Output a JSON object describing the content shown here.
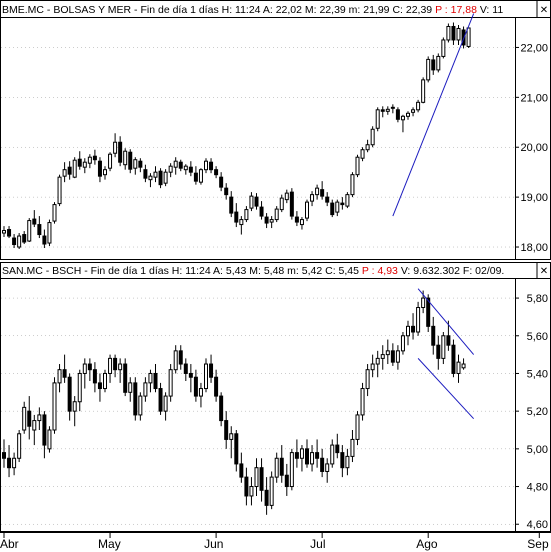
{
  "colors": {
    "candle": "#000000",
    "trendline": "#1c1cbf",
    "negative_text": "#e00000",
    "grid": "#9a9a9a",
    "border": "#000000"
  },
  "chart_data": [
    {
      "type": "candlestick",
      "header": {
        "prefix": "BME.MC - BOLSAS Y MER - Fin de día 1 días  H: 11:24  A: 22,02  M: 22,39  m: 21,99  C: 22,39 ",
        "change": "P : 17,88",
        "suffix": " V: 11"
      },
      "ylim": [
        17.82,
        22.55
      ],
      "y_ticks": [
        18.0,
        19.0,
        20.0,
        21.0,
        22.0
      ],
      "y_tick_labels": [
        "18,00",
        "19,00",
        "20,00",
        "21,00",
        "22,00"
      ],
      "ohlc": [
        [
          18.28,
          18.42,
          18.2,
          18.33
        ],
        [
          18.35,
          18.42,
          18.18,
          18.22
        ],
        [
          18.18,
          18.26,
          17.98,
          18.05
        ],
        [
          18.0,
          18.28,
          17.96,
          18.22
        ],
        [
          18.25,
          18.32,
          18.06,
          18.1
        ],
        [
          18.12,
          18.58,
          18.1,
          18.53
        ],
        [
          18.56,
          18.74,
          18.4,
          18.46
        ],
        [
          18.45,
          18.62,
          18.18,
          18.25
        ],
        [
          18.22,
          18.35,
          17.98,
          18.06
        ],
        [
          18.08,
          18.55,
          18.02,
          18.49
        ],
        [
          18.52,
          18.9,
          18.47,
          18.85
        ],
        [
          18.87,
          19.45,
          18.82,
          19.4
        ],
        [
          19.42,
          19.7,
          19.3,
          19.55
        ],
        [
          19.6,
          19.72,
          19.35,
          19.46
        ],
        [
          19.4,
          19.8,
          19.38,
          19.74
        ],
        [
          19.76,
          19.92,
          19.55,
          19.62
        ],
        [
          19.6,
          19.78,
          19.48,
          19.7
        ],
        [
          19.68,
          19.86,
          19.58,
          19.8
        ],
        [
          19.82,
          19.95,
          19.65,
          19.75
        ],
        [
          19.72,
          19.8,
          19.3,
          19.42
        ],
        [
          19.45,
          19.62,
          19.35,
          19.55
        ],
        [
          19.58,
          19.9,
          19.52,
          19.86
        ],
        [
          19.88,
          20.28,
          19.8,
          20.1
        ],
        [
          20.1,
          20.22,
          19.62,
          19.7
        ],
        [
          19.65,
          19.98,
          19.55,
          19.92
        ],
        [
          19.9,
          19.96,
          19.48,
          19.56
        ],
        [
          19.58,
          19.8,
          19.45,
          19.75
        ],
        [
          19.72,
          19.78,
          19.5,
          19.6
        ],
        [
          19.55,
          19.65,
          19.3,
          19.38
        ],
        [
          19.35,
          19.48,
          19.2,
          19.42
        ],
        [
          19.4,
          19.62,
          19.3,
          19.5
        ],
        [
          19.52,
          19.58,
          19.18,
          19.25
        ],
        [
          19.28,
          19.56,
          19.22,
          19.5
        ],
        [
          19.5,
          19.68,
          19.4,
          19.62
        ],
        [
          19.6,
          19.8,
          19.45,
          19.72
        ],
        [
          19.7,
          19.75,
          19.52,
          19.58
        ],
        [
          19.55,
          19.66,
          19.45,
          19.62
        ],
        [
          19.6,
          19.72,
          19.42,
          19.5
        ],
        [
          19.48,
          19.62,
          19.25,
          19.32
        ],
        [
          19.3,
          19.58,
          19.25,
          19.55
        ],
        [
          19.55,
          19.78,
          19.48,
          19.72
        ],
        [
          19.7,
          19.78,
          19.48,
          19.55
        ],
        [
          19.55,
          19.62,
          19.38,
          19.45
        ],
        [
          19.4,
          19.5,
          19.12,
          19.2
        ],
        [
          19.18,
          19.28,
          18.95,
          19.05
        ],
        [
          19.0,
          19.12,
          18.6,
          18.68
        ],
        [
          18.7,
          18.88,
          18.4,
          18.5
        ],
        [
          18.45,
          18.62,
          18.25,
          18.55
        ],
        [
          18.55,
          18.82,
          18.5,
          18.75
        ],
        [
          18.78,
          19.1,
          18.72,
          19.02
        ],
        [
          19.0,
          19.08,
          18.75,
          18.82
        ],
        [
          18.8,
          18.92,
          18.55,
          18.62
        ],
        [
          18.6,
          18.68,
          18.38,
          18.48
        ],
        [
          18.5,
          18.62,
          18.38,
          18.55
        ],
        [
          18.55,
          18.82,
          18.5,
          18.76
        ],
        [
          18.75,
          19.05,
          18.7,
          18.98
        ],
        [
          18.95,
          19.15,
          18.88,
          19.08
        ],
        [
          19.1,
          19.18,
          18.55,
          18.62
        ],
        [
          18.6,
          18.72,
          18.42,
          18.5
        ],
        [
          18.45,
          18.6,
          18.35,
          18.55
        ],
        [
          18.58,
          18.95,
          18.52,
          18.9
        ],
        [
          18.92,
          19.12,
          18.82,
          19.05
        ],
        [
          19.05,
          19.25,
          18.95,
          19.18
        ],
        [
          19.15,
          19.32,
          18.95,
          19.02
        ],
        [
          19.0,
          19.1,
          18.82,
          18.9
        ],
        [
          18.88,
          18.95,
          18.6,
          18.65
        ],
        [
          18.7,
          18.95,
          18.62,
          18.9
        ],
        [
          18.88,
          19.0,
          18.75,
          18.85
        ],
        [
          18.82,
          19.1,
          18.78,
          19.05
        ],
        [
          19.05,
          19.5,
          19.0,
          19.45
        ],
        [
          19.45,
          19.85,
          19.4,
          19.8
        ],
        [
          19.78,
          20.0,
          19.72,
          19.95
        ],
        [
          19.95,
          20.15,
          19.9,
          20.05
        ],
        [
          20.05,
          20.42,
          20.0,
          20.36
        ],
        [
          20.38,
          20.8,
          20.32,
          20.75
        ],
        [
          20.75,
          20.82,
          20.6,
          20.72
        ],
        [
          20.72,
          20.82,
          20.65,
          20.76
        ],
        [
          20.78,
          20.86,
          20.68,
          20.8
        ],
        [
          20.75,
          20.8,
          20.5,
          20.56
        ],
        [
          20.55,
          20.65,
          20.3,
          20.62
        ],
        [
          20.62,
          20.72,
          20.55,
          20.68
        ],
        [
          20.7,
          20.8,
          20.62,
          20.75
        ],
        [
          20.75,
          20.95,
          20.7,
          20.9
        ],
        [
          20.9,
          21.4,
          20.88,
          21.35
        ],
        [
          21.35,
          21.82,
          21.3,
          21.76
        ],
        [
          21.75,
          21.85,
          21.45,
          21.55
        ],
        [
          21.55,
          21.88,
          21.5,
          21.82
        ],
        [
          21.82,
          22.2,
          21.78,
          22.15
        ],
        [
          22.15,
          22.48,
          22.1,
          22.42
        ],
        [
          22.42,
          22.5,
          22.05,
          22.15
        ],
        [
          22.15,
          22.45,
          22.05,
          22.38
        ],
        [
          22.35,
          22.42,
          21.98,
          22.05
        ],
        [
          22.02,
          22.39,
          21.99,
          22.39
        ]
      ],
      "trendlines": [
        {
          "from": [
            77,
            18.62
          ],
          "to": [
            93,
            22.68
          ]
        }
      ]
    },
    {
      "type": "candlestick",
      "header": {
        "prefix": "SAN.MC - BSCH - Fin de día 1 días  H: 11:24  A: 5,43  M: 5,48  m: 5,42  C: 5,45 ",
        "change": "P : 4,93",
        "suffix": " V: 9.632.302  F: 02/09."
      },
      "ylim": [
        4.58,
        5.88
      ],
      "y_ticks": [
        4.6,
        4.8,
        5.0,
        5.2,
        5.4,
        5.6,
        5.8
      ],
      "y_tick_labels": [
        "4,60",
        "4,80",
        "5,00",
        "5,20",
        "5,40",
        "5,60",
        "5,80"
      ],
      "x_ticks": [
        0,
        21,
        42,
        63,
        84,
        106
      ],
      "x_tick_labels": [
        "Abr",
        "May",
        "Jun",
        "Jul",
        "Ago",
        "Sep"
      ],
      "ohlc": [
        [
          4.98,
          5.05,
          4.9,
          4.95
        ],
        [
          4.95,
          5.02,
          4.85,
          4.9
        ],
        [
          4.9,
          4.98,
          4.86,
          4.95
        ],
        [
          4.95,
          5.1,
          4.93,
          5.08
        ],
        [
          5.1,
          5.25,
          5.08,
          5.22
        ],
        [
          5.2,
          5.28,
          5.05,
          5.12
        ],
        [
          5.1,
          5.18,
          5.02,
          5.15
        ],
        [
          5.15,
          5.22,
          5.1,
          5.18
        ],
        [
          5.18,
          5.2,
          4.95,
          5.02
        ],
        [
          5.0,
          5.12,
          4.98,
          5.1
        ],
        [
          5.1,
          5.38,
          5.08,
          5.35
        ],
        [
          5.35,
          5.45,
          5.3,
          5.42
        ],
        [
          5.42,
          5.5,
          5.35,
          5.38
        ],
        [
          5.38,
          5.4,
          5.15,
          5.2
        ],
        [
          5.2,
          5.28,
          5.12,
          5.25
        ],
        [
          5.25,
          5.42,
          5.2,
          5.4
        ],
        [
          5.4,
          5.48,
          5.32,
          5.45
        ],
        [
          5.45,
          5.48,
          5.36,
          5.42
        ],
        [
          5.42,
          5.46,
          5.3,
          5.35
        ],
        [
          5.35,
          5.4,
          5.25,
          5.32
        ],
        [
          5.32,
          5.42,
          5.3,
          5.4
        ],
        [
          5.4,
          5.5,
          5.35,
          5.48
        ],
        [
          5.48,
          5.5,
          5.38,
          5.42
        ],
        [
          5.42,
          5.48,
          5.35,
          5.45
        ],
        [
          5.45,
          5.48,
          5.28,
          5.3
        ],
        [
          5.3,
          5.38,
          5.25,
          5.35
        ],
        [
          5.35,
          5.38,
          5.15,
          5.18
        ],
        [
          5.18,
          5.3,
          5.15,
          5.28
        ],
        [
          5.28,
          5.38,
          5.25,
          5.35
        ],
        [
          5.35,
          5.42,
          5.3,
          5.4
        ],
        [
          5.4,
          5.45,
          5.3,
          5.32
        ],
        [
          5.32,
          5.35,
          5.18,
          5.2
        ],
        [
          5.2,
          5.3,
          5.15,
          5.28
        ],
        [
          5.28,
          5.45,
          5.25,
          5.42
        ],
        [
          5.42,
          5.55,
          5.4,
          5.52
        ],
        [
          5.52,
          5.55,
          5.42,
          5.45
        ],
        [
          5.45,
          5.48,
          5.36,
          5.4
        ],
        [
          5.4,
          5.45,
          5.3,
          5.38
        ],
        [
          5.38,
          5.42,
          5.25,
          5.28
        ],
        [
          5.28,
          5.35,
          5.22,
          5.32
        ],
        [
          5.32,
          5.48,
          5.3,
          5.45
        ],
        [
          5.45,
          5.5,
          5.35,
          5.38
        ],
        [
          5.38,
          5.42,
          5.25,
          5.28
        ],
        [
          5.28,
          5.3,
          5.12,
          5.15
        ],
        [
          5.15,
          5.2,
          5.0,
          5.05
        ],
        [
          5.05,
          5.12,
          4.95,
          5.08
        ],
        [
          5.08,
          5.1,
          4.88,
          4.92
        ],
        [
          4.92,
          4.98,
          4.82,
          4.85
        ],
        [
          4.85,
          4.9,
          4.7,
          4.75
        ],
        [
          4.75,
          4.85,
          4.7,
          4.8
        ],
        [
          4.8,
          4.95,
          4.75,
          4.9
        ],
        [
          4.9,
          4.95,
          4.72,
          4.78
        ],
        [
          4.78,
          4.85,
          4.65,
          4.7
        ],
        [
          4.7,
          4.88,
          4.68,
          4.85
        ],
        [
          4.85,
          4.98,
          4.82,
          4.95
        ],
        [
          4.95,
          5.02,
          4.82,
          4.86
        ],
        [
          4.86,
          4.92,
          4.75,
          4.8
        ],
        [
          4.8,
          5.0,
          4.78,
          4.98
        ],
        [
          4.98,
          5.05,
          4.9,
          4.95
        ],
        [
          4.95,
          5.02,
          4.88,
          5.0
        ],
        [
          5.0,
          5.05,
          4.9,
          4.92
        ],
        [
          4.92,
          5.02,
          4.88,
          4.98
        ],
        [
          4.98,
          5.05,
          4.9,
          4.95
        ],
        [
          4.95,
          5.0,
          4.85,
          4.88
        ],
        [
          4.88,
          4.95,
          4.82,
          4.92
        ],
        [
          4.92,
          5.05,
          4.9,
          5.02
        ],
        [
          5.02,
          5.08,
          4.95,
          4.98
        ],
        [
          4.98,
          5.02,
          4.85,
          4.9
        ],
        [
          4.9,
          5.0,
          4.86,
          4.96
        ],
        [
          4.96,
          5.1,
          4.93,
          5.05
        ],
        [
          5.05,
          5.2,
          5.02,
          5.18
        ],
        [
          5.18,
          5.35,
          5.15,
          5.32
        ],
        [
          5.32,
          5.45,
          5.28,
          5.42
        ],
        [
          5.42,
          5.5,
          5.38,
          5.45
        ],
        [
          5.45,
          5.52,
          5.38,
          5.48
        ],
        [
          5.48,
          5.55,
          5.42,
          5.5
        ],
        [
          5.5,
          5.58,
          5.45,
          5.52
        ],
        [
          5.52,
          5.56,
          5.44,
          5.46
        ],
        [
          5.46,
          5.55,
          5.42,
          5.52
        ],
        [
          5.52,
          5.62,
          5.5,
          5.6
        ],
        [
          5.6,
          5.68,
          5.55,
          5.65
        ],
        [
          5.65,
          5.72,
          5.58,
          5.62
        ],
        [
          5.62,
          5.78,
          5.6,
          5.75
        ],
        [
          5.75,
          5.84,
          5.72,
          5.8
        ],
        [
          5.8,
          5.82,
          5.62,
          5.65
        ],
        [
          5.65,
          5.7,
          5.5,
          5.55
        ],
        [
          5.55,
          5.6,
          5.42,
          5.48
        ],
        [
          5.48,
          5.62,
          5.45,
          5.6
        ],
        [
          5.6,
          5.68,
          5.52,
          5.55
        ],
        [
          5.55,
          5.58,
          5.38,
          5.4
        ],
        [
          5.4,
          5.5,
          5.35,
          5.46
        ],
        [
          5.43,
          5.48,
          5.42,
          5.45
        ]
      ],
      "trendlines": [
        {
          "from": [
            82,
            5.85
          ],
          "to": [
            93,
            5.5
          ]
        },
        {
          "from": [
            82,
            5.48
          ],
          "to": [
            93,
            5.16
          ]
        }
      ]
    }
  ]
}
